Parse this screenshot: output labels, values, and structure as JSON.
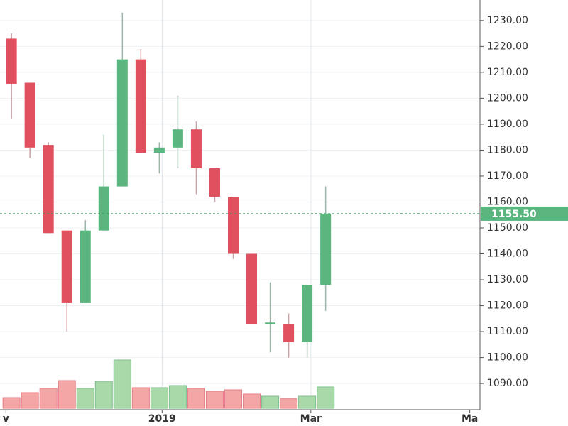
{
  "chart_data": {
    "type": "candlestick",
    "x": [
      0,
      1,
      2,
      3,
      4,
      5,
      6,
      7,
      8,
      9,
      10,
      11,
      12,
      13,
      14,
      15,
      16,
      17
    ],
    "open": [
      1223,
      1206,
      1182,
      1149,
      1121,
      1149,
      1166,
      1215,
      1179,
      1181,
      1188,
      1173,
      1162,
      1140,
      1113,
      1113,
      1106,
      1128
    ],
    "high": [
      1225,
      1206,
      1183,
      1149,
      1153,
      1186,
      1233,
      1219,
      1183,
      1201,
      1191,
      1173,
      1162,
      1140,
      1129,
      1117,
      1128,
      1166
    ],
    "low": [
      1192,
      1177,
      1148,
      1110,
      1121,
      1149,
      1166,
      1179,
      1171,
      1173,
      1163,
      1160,
      1138,
      1113,
      1102,
      1100,
      1100,
      1118
    ],
    "close": [
      1205.6,
      1181,
      1148,
      1121,
      1149,
      1166,
      1215,
      1179,
      1181,
      1188,
      1173,
      1162,
      1140,
      1113,
      1113.5,
      1106,
      1128,
      1155.5
    ],
    "volume": [
      15,
      22,
      28,
      39,
      28,
      38,
      68,
      29,
      29,
      32,
      28,
      24,
      26,
      20,
      17,
      14,
      17,
      30
    ],
    "vlim": [
      0,
      100
    ],
    "up_color": "#5ab57e",
    "down_color": "#e0505e",
    "up_volume_color": "#a9d8a9",
    "down_volume_color": "#f4a5a5",
    "xlim": [
      -0.62,
      25.35
    ],
    "xticks": [
      {
        "value": -0.3,
        "label": "v"
      },
      {
        "value": 8.15,
        "label": "2019"
      },
      {
        "value": 16.2,
        "label": "Mar"
      },
      {
        "value": 24.8,
        "label": "Ma"
      }
    ],
    "ylim": [
      1079.9,
      1237.9
    ],
    "yticks": [
      {
        "value": 1090,
        "label": "1090.00"
      },
      {
        "value": 1100,
        "label": "1100.00"
      },
      {
        "value": 1110,
        "label": "1110.00"
      },
      {
        "value": 1120,
        "label": "1120.00"
      },
      {
        "value": 1130,
        "label": "1130.00"
      },
      {
        "value": 1140,
        "label": "1140.00"
      },
      {
        "value": 1150,
        "label": "1150.00"
      },
      {
        "value": 1160,
        "label": "1160.00"
      },
      {
        "value": 1170,
        "label": "1170.00"
      },
      {
        "value": 1180,
        "label": "1180.00"
      },
      {
        "value": 1190,
        "label": "1190.00"
      },
      {
        "value": 1200,
        "label": "1200.00"
      },
      {
        "value": 1210,
        "label": "1210.00"
      },
      {
        "value": 1220,
        "label": "1220.00"
      },
      {
        "value": 1230,
        "label": "1230.00"
      }
    ],
    "last_price": {
      "value": 1155.5,
      "label": "1155.50"
    },
    "grid": true
  }
}
